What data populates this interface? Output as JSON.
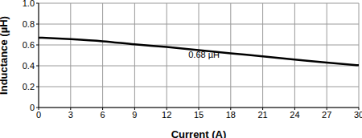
{
  "chart_data": {
    "type": "line",
    "x_label": "Current (A)",
    "y_label": "Inductance (µH)",
    "x": [
      0,
      3,
      6,
      9,
      12,
      15,
      18,
      21,
      24,
      27,
      30
    ],
    "series": [
      {
        "name": "0.68 µH",
        "color": "#000000",
        "values": [
          0.67,
          0.655,
          0.635,
          0.605,
          0.58,
          0.55,
          0.52,
          0.49,
          0.46,
          0.43,
          0.405
        ],
        "marker": "none"
      }
    ],
    "xlim": [
      0,
      30
    ],
    "xticks": [
      0,
      3,
      6,
      9,
      12,
      15,
      18,
      21,
      24,
      27,
      30
    ],
    "ylim": [
      0,
      1
    ],
    "yticks": [
      0,
      0.2,
      0.4,
      0.6,
      0.8,
      {
        "value": 1,
        "label": "1.0"
      }
    ],
    "grid": true,
    "annotations": [
      {
        "text": "0.68 µH",
        "x": 15.5,
        "y": 0.505
      }
    ]
  }
}
